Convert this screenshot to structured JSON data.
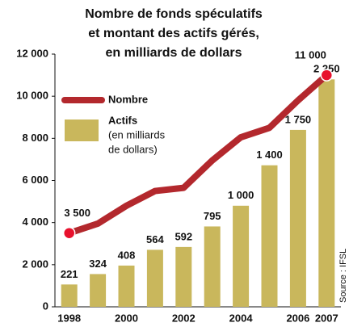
{
  "chart_data": {
    "type": "bar_line",
    "title": [
      "Nombre de fonds spéculatifs",
      "et montant des actifs gérés,",
      "en milliards de dollars"
    ],
    "categories": [
      "1998",
      null,
      "2000",
      null,
      "2002",
      null,
      "2004",
      null,
      "2006",
      "2007"
    ],
    "series": [
      {
        "name": "Nombre",
        "type": "line",
        "color": "#b3282d",
        "values": [
          3500,
          3950,
          4800,
          5500,
          5650,
          6950,
          8050,
          8500,
          9800,
          11000
        ],
        "value_labels": [
          "3 500",
          null,
          null,
          null,
          null,
          null,
          null,
          null,
          null,
          "11 000"
        ]
      },
      {
        "name": "Actifs",
        "type": "bar",
        "axis": "y2",
        "color": "#c9b75c",
        "values": [
          221,
          324,
          408,
          564,
          592,
          795,
          1000,
          1400,
          1750,
          2250
        ],
        "value_labels": [
          "221",
          "324",
          "408",
          "564",
          "592",
          "795",
          "1 000",
          "1 400",
          "1 750",
          "2 250"
        ]
      }
    ],
    "legend_note": [
      "(en milliards",
      "de dollars)"
    ],
    "ylim": [
      0,
      12000
    ],
    "yticks": [
      0,
      {
        "value": 2000,
        "label": "2 000"
      },
      {
        "value": 4000,
        "label": "4 000"
      },
      {
        "value": 6000,
        "label": "6 000"
      },
      {
        "value": 8000,
        "label": "8 000"
      },
      {
        "value": 10000,
        "label": "10 000"
      },
      {
        "value": 12000,
        "label": "12 000"
      }
    ],
    "y2lim": [
      0,
      2500
    ],
    "source": "Source : IFSL"
  }
}
